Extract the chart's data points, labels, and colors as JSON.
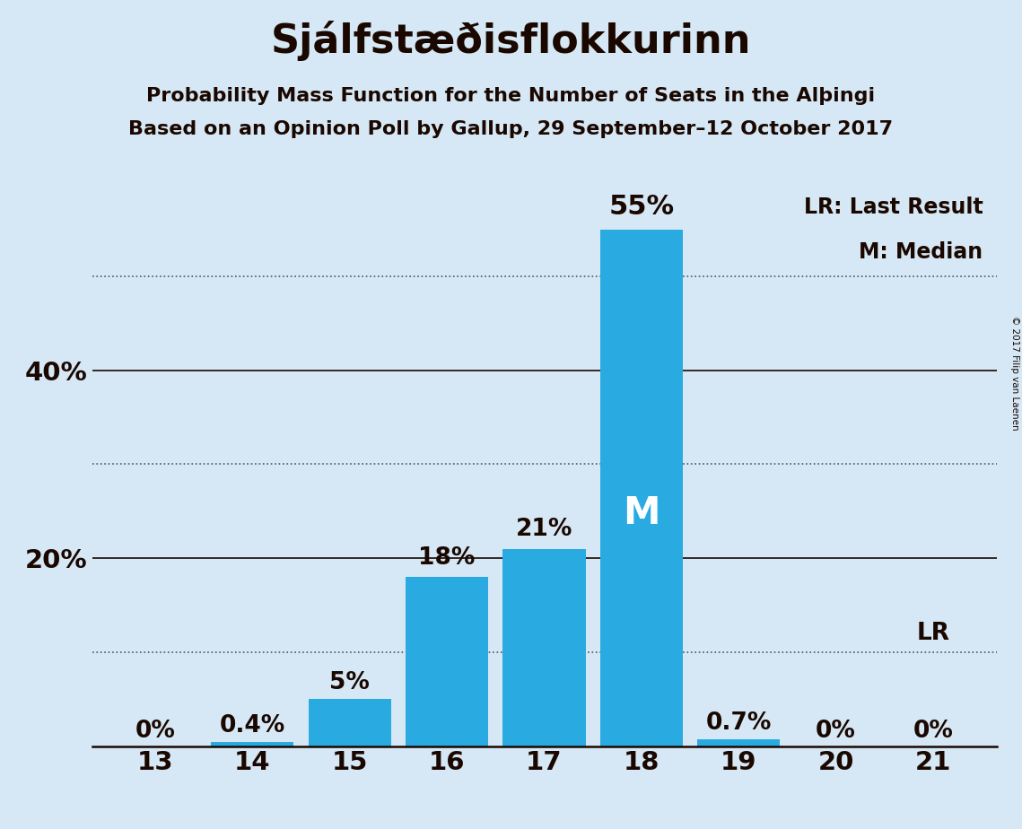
{
  "title": "Sjálfstæðisflokkurinn",
  "subtitle1": "Probability Mass Function for the Number of Seats in the Alþingi",
  "subtitle2": "Based on an Opinion Poll by Gallup, 29 September–12 October 2017",
  "seats": [
    13,
    14,
    15,
    16,
    17,
    18,
    19,
    20,
    21
  ],
  "values": [
    0.0,
    0.4,
    5.0,
    18.0,
    21.0,
    55.0,
    0.7,
    0.0,
    0.0
  ],
  "labels": [
    "0%",
    "0.4%",
    "5%",
    "18%",
    "21%",
    "55%",
    "0.7%",
    "0%",
    "0%"
  ],
  "bar_color": "#29ABE2",
  "background_color": "#D6E8F5",
  "text_color": "#1a0800",
  "median_seat": 18,
  "lr_seat": 21,
  "legend_lr": "LR: Last Result",
  "legend_m": "M: Median",
  "copyright": "© 2017 Filip van Laenen",
  "ylim": [
    0,
    60
  ],
  "solid_yticks": [
    20,
    40
  ],
  "dotted_yticks": [
    10,
    30,
    50
  ],
  "ytick_labels_solid": [
    [
      20,
      "20%"
    ],
    [
      40,
      "40%"
    ]
  ],
  "grid_color": "#555555",
  "title_fontsize": 32,
  "subtitle_fontsize": 16,
  "bar_label_fontsize": 19,
  "axis_label_fontsize": 21,
  "legend_fontsize": 17,
  "median_label_fontsize": 30
}
